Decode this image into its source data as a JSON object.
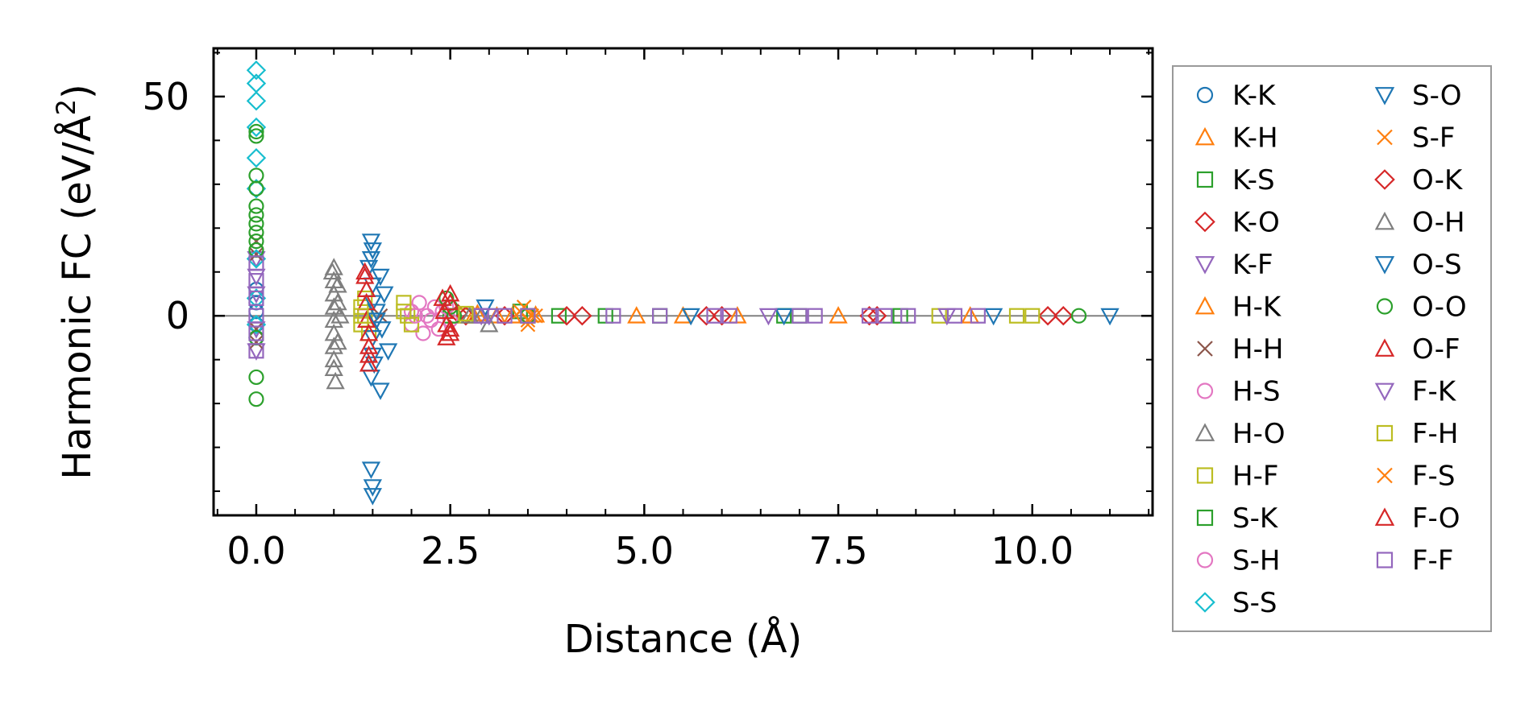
{
  "chart_data": {
    "type": "scatter",
    "title": "",
    "xlabel": "Distance (Å)",
    "ylabel": "Harmonic FC (eV/Å²)",
    "ylabel_main": "Harmonic FC (eV/Å",
    "ylabel_sup": "2",
    "ylabel_tail": ")",
    "xlim": [
      -0.55,
      11.55
    ],
    "ylim": [
      -45.5,
      61
    ],
    "x_ticks": [
      0.0,
      2.5,
      5.0,
      7.5,
      10.0
    ],
    "x_tick_labels": [
      "0.0",
      "2.5",
      "5.0",
      "7.5",
      "10.0"
    ],
    "y_ticks": [
      0,
      50
    ],
    "y_tick_labels": [
      "0",
      "50"
    ],
    "zero_line": 0,
    "legend_position": "outside-right",
    "series": [
      {
        "name": "K-K",
        "marker": "circle",
        "color": "#1f77b4",
        "points": [
          [
            0,
            3
          ],
          [
            0,
            -2
          ],
          [
            0,
            6
          ],
          [
            0,
            -5
          ],
          [
            0,
            1
          ]
        ]
      },
      {
        "name": "K-H",
        "marker": "triangle-up",
        "color": "#ff7f0e",
        "points": [
          [
            2.85,
            0.5
          ],
          [
            3.1,
            0
          ],
          [
            3.6,
            0.2
          ],
          [
            4.9,
            0
          ],
          [
            6.2,
            0
          ],
          [
            7.5,
            0
          ]
        ]
      },
      {
        "name": "K-S",
        "marker": "square",
        "color": "#2ca02c",
        "points": [
          [
            2.5,
            0
          ],
          [
            3.4,
            1
          ],
          [
            3.9,
            0
          ],
          [
            5.2,
            0
          ],
          [
            6.8,
            0
          ],
          [
            8.3,
            0
          ]
        ]
      },
      {
        "name": "K-O",
        "marker": "diamond",
        "color": "#d62728",
        "points": [
          [
            2.6,
            0.5
          ],
          [
            3.2,
            0
          ],
          [
            4.0,
            0
          ],
          [
            6.0,
            0
          ],
          [
            8.0,
            0
          ],
          [
            10.2,
            0
          ]
        ]
      },
      {
        "name": "K-F",
        "marker": "triangle-down",
        "color": "#9467bd",
        "points": [
          [
            0,
            13
          ],
          [
            0,
            9
          ],
          [
            0,
            5
          ],
          [
            0,
            -3
          ],
          [
            0,
            -8
          ],
          [
            2.9,
            0
          ]
        ]
      },
      {
        "name": "H-K",
        "marker": "triangle-up",
        "color": "#ff7f0e",
        "points": [
          [
            2.8,
            0
          ],
          [
            3.3,
            0
          ],
          [
            5.5,
            0
          ],
          [
            9.2,
            0
          ]
        ]
      },
      {
        "name": "H-H",
        "marker": "x",
        "color": "#8c564b",
        "points": [
          [
            0,
            14
          ],
          [
            0,
            17
          ],
          [
            0,
            -6
          ],
          [
            0,
            -3
          ],
          [
            1.6,
            0
          ]
        ]
      },
      {
        "name": "H-S",
        "marker": "circle",
        "color": "#e377c2",
        "points": [
          [
            2.0,
            1
          ],
          [
            2.0,
            -2
          ],
          [
            2.1,
            3
          ],
          [
            2.15,
            -4
          ],
          [
            2.2,
            0
          ],
          [
            2.3,
            2
          ],
          [
            2.35,
            -3
          ],
          [
            2.4,
            1
          ],
          [
            2.5,
            -1
          ]
        ]
      },
      {
        "name": "H-O",
        "marker": "triangle-up",
        "color": "#7f7f7f",
        "points": [
          [
            1.0,
            11
          ],
          [
            1.0,
            8
          ],
          [
            1.0,
            5
          ],
          [
            1.0,
            2
          ],
          [
            1.0,
            -1
          ],
          [
            1.0,
            -4
          ],
          [
            1.0,
            -7
          ],
          [
            1.0,
            -10
          ],
          [
            1.02,
            -15
          ],
          [
            1.05,
            3
          ],
          [
            1.05,
            -6
          ],
          [
            1.08,
            0
          ],
          [
            2.9,
            0
          ],
          [
            3.0,
            -2
          ]
        ]
      },
      {
        "name": "H-F",
        "marker": "square",
        "color": "#bcbd22",
        "points": [
          [
            1.35,
            2
          ],
          [
            1.35,
            -2
          ],
          [
            1.4,
            0
          ],
          [
            1.45,
            -4
          ],
          [
            1.4,
            4
          ],
          [
            1.9,
            3
          ],
          [
            1.95,
            0
          ],
          [
            2.0,
            -2
          ],
          [
            2.7,
            0
          ],
          [
            8.8,
            0
          ],
          [
            10.0,
            0
          ]
        ]
      },
      {
        "name": "S-K",
        "marker": "square",
        "color": "#2ca02c",
        "points": [
          [
            3.5,
            0
          ],
          [
            4.5,
            0
          ],
          [
            7.0,
            0
          ]
        ]
      },
      {
        "name": "S-H",
        "marker": "circle",
        "color": "#e377c2",
        "points": [
          [
            2.05,
            0
          ],
          [
            2.25,
            -1
          ],
          [
            2.45,
            2
          ]
        ]
      },
      {
        "name": "S-S",
        "marker": "diamond",
        "color": "#17becf",
        "points": [
          [
            0,
            56
          ],
          [
            0,
            53
          ],
          [
            0,
            49
          ],
          [
            0,
            43
          ],
          [
            0,
            36
          ],
          [
            0,
            29
          ],
          [
            0,
            13
          ],
          [
            0,
            4
          ],
          [
            0,
            -2
          ]
        ]
      },
      {
        "name": "S-O",
        "marker": "triangle-down",
        "color": "#1f77b4",
        "points": [
          [
            1.48,
            17
          ],
          [
            1.5,
            15
          ],
          [
            1.45,
            11
          ],
          [
            1.5,
            7
          ],
          [
            1.5,
            3
          ],
          [
            1.55,
            -1
          ],
          [
            1.5,
            -5
          ],
          [
            1.5,
            -9
          ],
          [
            1.48,
            -14
          ],
          [
            1.6,
            -17
          ],
          [
            1.48,
            -35
          ],
          [
            1.5,
            -39
          ],
          [
            1.5,
            -41
          ],
          [
            1.6,
            9
          ],
          [
            1.62,
            -3
          ],
          [
            1.65,
            5
          ],
          [
            1.7,
            -8
          ],
          [
            2.95,
            2
          ],
          [
            6.8,
            0
          ],
          [
            11.0,
            0
          ]
        ]
      },
      {
        "name": "S-F",
        "marker": "x",
        "color": "#ff7f0e",
        "points": [
          [
            3.4,
            1
          ],
          [
            3.5,
            -2
          ],
          [
            3.55,
            0
          ]
        ]
      },
      {
        "name": "O-K",
        "marker": "diamond",
        "color": "#d62728",
        "points": [
          [
            2.7,
            0
          ],
          [
            4.2,
            0
          ],
          [
            5.8,
            0
          ],
          [
            7.9,
            0
          ],
          [
            10.4,
            0
          ]
        ]
      },
      {
        "name": "O-H",
        "marker": "triangle-up",
        "color": "#7f7f7f",
        "points": [
          [
            0.98,
            10
          ],
          [
            1.0,
            -12
          ],
          [
            1.05,
            7
          ],
          [
            2.75,
            0
          ]
        ]
      },
      {
        "name": "O-S",
        "marker": "triangle-down",
        "color": "#1f77b4",
        "points": [
          [
            1.48,
            13
          ],
          [
            1.52,
            -11
          ],
          [
            1.55,
            1
          ],
          [
            3.0,
            0
          ],
          [
            5.6,
            0
          ],
          [
            9.5,
            0
          ]
        ]
      },
      {
        "name": "O-O",
        "marker": "circle",
        "color": "#2ca02c",
        "points": [
          [
            0,
            42
          ],
          [
            0,
            41
          ],
          [
            0,
            32
          ],
          [
            0,
            29
          ],
          [
            0,
            25
          ],
          [
            0,
            23
          ],
          [
            0,
            21
          ],
          [
            0,
            19
          ],
          [
            0,
            17
          ],
          [
            0,
            15
          ],
          [
            0,
            -5
          ],
          [
            0,
            -14
          ],
          [
            0,
            -19
          ],
          [
            2.45,
            4
          ],
          [
            2.5,
            2
          ],
          [
            2.55,
            0
          ],
          [
            3.5,
            0
          ],
          [
            10.6,
            0
          ]
        ]
      },
      {
        "name": "O-F",
        "marker": "triangle-up",
        "color": "#d62728",
        "points": [
          [
            1.4,
            9
          ],
          [
            1.42,
            6
          ],
          [
            1.42,
            3
          ],
          [
            1.42,
            -1
          ],
          [
            1.45,
            -4
          ],
          [
            1.45,
            -7
          ],
          [
            1.45,
            -11
          ],
          [
            2.4,
            4
          ],
          [
            2.42,
            1
          ],
          [
            2.45,
            -2
          ],
          [
            2.45,
            -5
          ],
          [
            2.5,
            3
          ],
          [
            2.5,
            -3
          ]
        ]
      },
      {
        "name": "F-K",
        "marker": "triangle-down",
        "color": "#9467bd",
        "points": [
          [
            3.0,
            0
          ],
          [
            6.6,
            0
          ],
          [
            8.9,
            0
          ]
        ]
      },
      {
        "name": "F-H",
        "marker": "square",
        "color": "#bcbd22",
        "points": [
          [
            1.35,
            0
          ],
          [
            1.9,
            1
          ],
          [
            2.7,
            0.5
          ],
          [
            9.8,
            0
          ]
        ]
      },
      {
        "name": "F-S",
        "marker": "x",
        "color": "#ff7f0e",
        "points": [
          [
            3.45,
            2
          ],
          [
            3.5,
            -1
          ],
          [
            3.6,
            0
          ]
        ]
      },
      {
        "name": "F-O",
        "marker": "triangle-up",
        "color": "#d62728",
        "points": [
          [
            1.4,
            10
          ],
          [
            1.45,
            -9
          ],
          [
            2.5,
            5
          ],
          [
            2.5,
            -4
          ]
        ]
      },
      {
        "name": "F-F",
        "marker": "square",
        "color": "#9467bd",
        "points": [
          [
            0,
            12
          ],
          [
            0,
            8
          ],
          [
            0,
            4
          ],
          [
            0,
            0
          ],
          [
            0,
            -4
          ],
          [
            0,
            -8
          ],
          [
            2.9,
            0
          ],
          [
            3.2,
            0
          ],
          [
            3.5,
            0
          ],
          [
            4.6,
            0
          ],
          [
            5.2,
            0
          ],
          [
            5.9,
            0
          ],
          [
            6.1,
            0
          ],
          [
            7.0,
            0
          ],
          [
            7.2,
            0
          ],
          [
            7.9,
            0
          ],
          [
            8.1,
            0
          ],
          [
            8.4,
            0
          ],
          [
            9.0,
            0
          ],
          [
            9.3,
            0
          ]
        ]
      }
    ]
  }
}
